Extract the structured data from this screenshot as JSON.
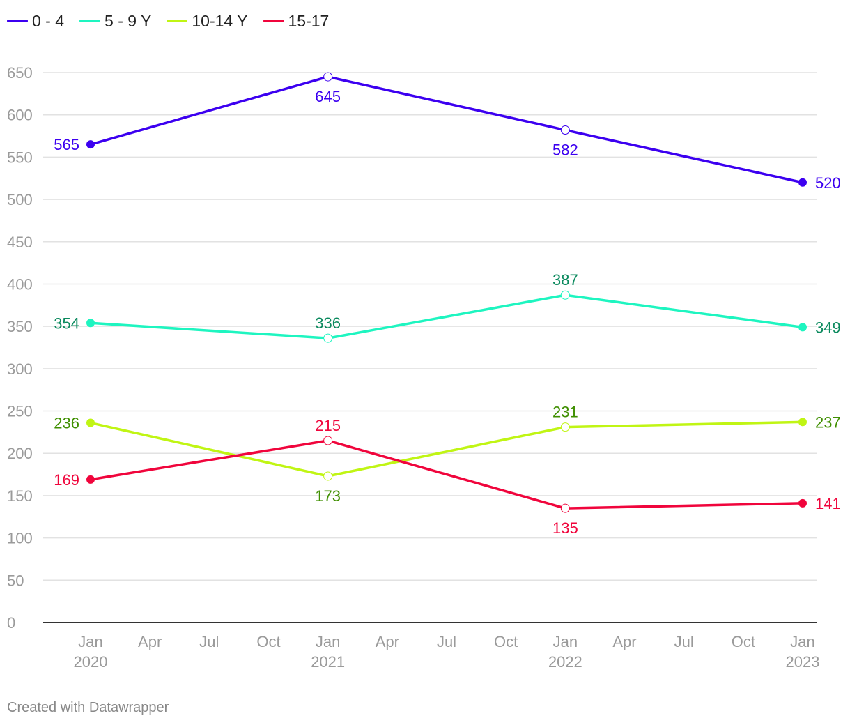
{
  "chart_data": {
    "type": "line",
    "title": "",
    "xlabel": "",
    "ylabel": "",
    "ylim": [
      0,
      650
    ],
    "yticks": [
      0,
      50,
      100,
      150,
      200,
      250,
      300,
      350,
      400,
      450,
      500,
      550,
      600,
      650
    ],
    "x": [
      "2020-01",
      "2021-01",
      "2022-01",
      "2023-01"
    ],
    "xticks": [
      {
        "label": "Jan",
        "year": "2020"
      },
      {
        "label": "Apr",
        "year": ""
      },
      {
        "label": "Jul",
        "year": ""
      },
      {
        "label": "Oct",
        "year": ""
      },
      {
        "label": "Jan",
        "year": "2021"
      },
      {
        "label": "Apr",
        "year": ""
      },
      {
        "label": "Jul",
        "year": ""
      },
      {
        "label": "Oct",
        "year": ""
      },
      {
        "label": "Jan",
        "year": "2022"
      },
      {
        "label": "Apr",
        "year": ""
      },
      {
        "label": "Jul",
        "year": ""
      },
      {
        "label": "Oct",
        "year": ""
      },
      {
        "label": "Jan",
        "year": "2023"
      }
    ],
    "grid": true,
    "legend_position": "top-left",
    "series": [
      {
        "name": "0 - 4",
        "color": "#3c00f0",
        "label_color": "#3c00f0",
        "values": [
          565,
          645,
          582,
          520
        ],
        "label_pos": [
          "left",
          "below",
          "below",
          "right"
        ]
      },
      {
        "name": "5 - 9 Y",
        "color": "#1ef5c0",
        "label_color": "#0b8a5e",
        "values": [
          354,
          336,
          387,
          349
        ],
        "label_pos": [
          "left",
          "above",
          "above",
          "right"
        ]
      },
      {
        "name": "10-14 Y",
        "color": "#c0f514",
        "label_color": "#3f8f00",
        "values": [
          236,
          173,
          231,
          237
        ],
        "label_pos": [
          "left",
          "below",
          "above",
          "right"
        ]
      },
      {
        "name": "15-17",
        "color": "#f0053c",
        "label_color": "#f0053c",
        "values": [
          169,
          215,
          135,
          141
        ],
        "label_pos": [
          "left",
          "above",
          "below",
          "right"
        ]
      }
    ]
  },
  "footer": {
    "credit": "Created with Datawrapper"
  }
}
